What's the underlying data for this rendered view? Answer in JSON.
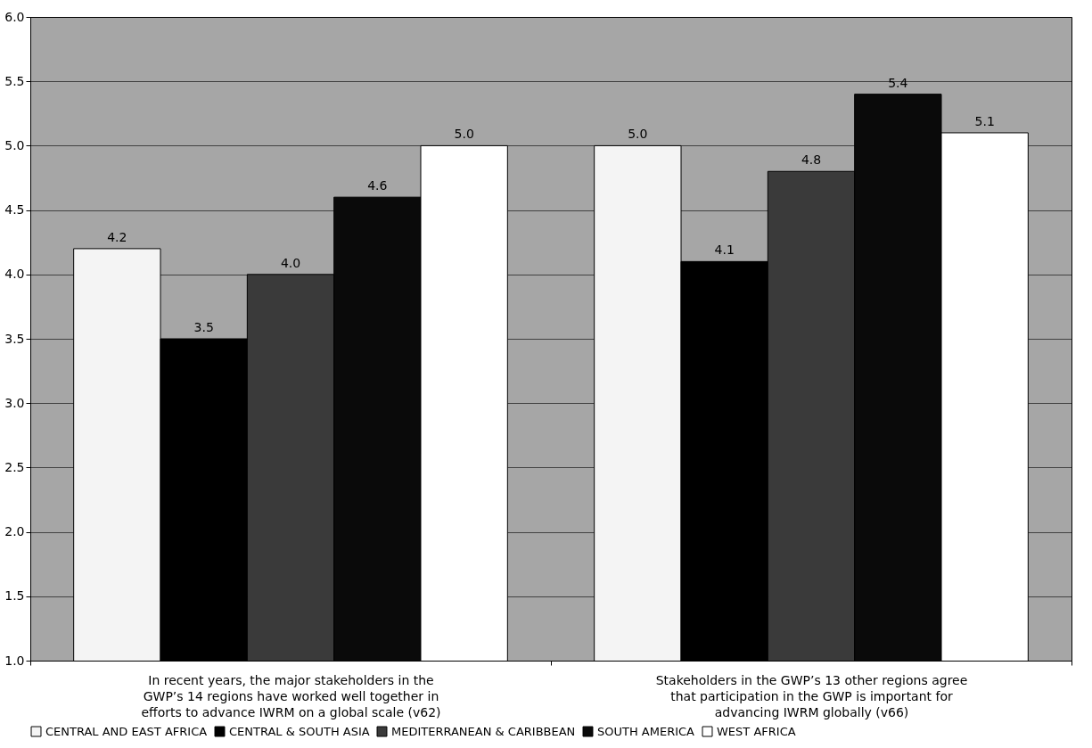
{
  "chart_data": {
    "type": "bar",
    "categories": [
      "In recent years, the major stakeholders in the GWP’s 14 regions have worked well together in efforts to advance IWRM on a global scale (v62)",
      "Stakeholders in the GWP’s 13 other regions agree that participation in the GWP is important for advancing IWRM globally (v66)"
    ],
    "series": [
      {
        "name": "CENTRAL AND EAST AFRICA",
        "color": "#f4f4f4",
        "values": [
          4.2,
          5.0
        ],
        "value_labels": [
          "4.2",
          "5.0"
        ]
      },
      {
        "name": "CENTRAL & SOUTH ASIA",
        "color": "#000000",
        "values": [
          3.5,
          4.1
        ],
        "value_labels": [
          "3.5",
          "4.1"
        ]
      },
      {
        "name": "MEDITERRANEAN & CARIBBEAN",
        "color": "#3a3a3a",
        "values": [
          4.0,
          4.8
        ],
        "value_labels": [
          "4.0",
          "4.8"
        ]
      },
      {
        "name": "SOUTH AMERICA",
        "color": "#0a0a0a",
        "values": [
          4.6,
          5.4
        ],
        "value_labels": [
          "4.6",
          "5.4"
        ]
      },
      {
        "name": "WEST AFRICA",
        "color": "#ffffff",
        "values": [
          5.0,
          5.1
        ],
        "value_labels": [
          "5.0",
          "5.1"
        ]
      }
    ],
    "ylim": [
      1,
      6
    ],
    "yticks": [
      {
        "value": 1,
        "label": "1.0"
      },
      1.5,
      {
        "value": 2,
        "label": "2.0"
      },
      2.5,
      {
        "value": 3,
        "label": "3.0"
      },
      3.5,
      {
        "value": 4,
        "label": "4.0"
      },
      4.5,
      {
        "value": 5,
        "label": "5.0"
      },
      5.5,
      {
        "value": 6,
        "label": "6.0"
      }
    ],
    "grid": "y",
    "legend": "bottom"
  }
}
